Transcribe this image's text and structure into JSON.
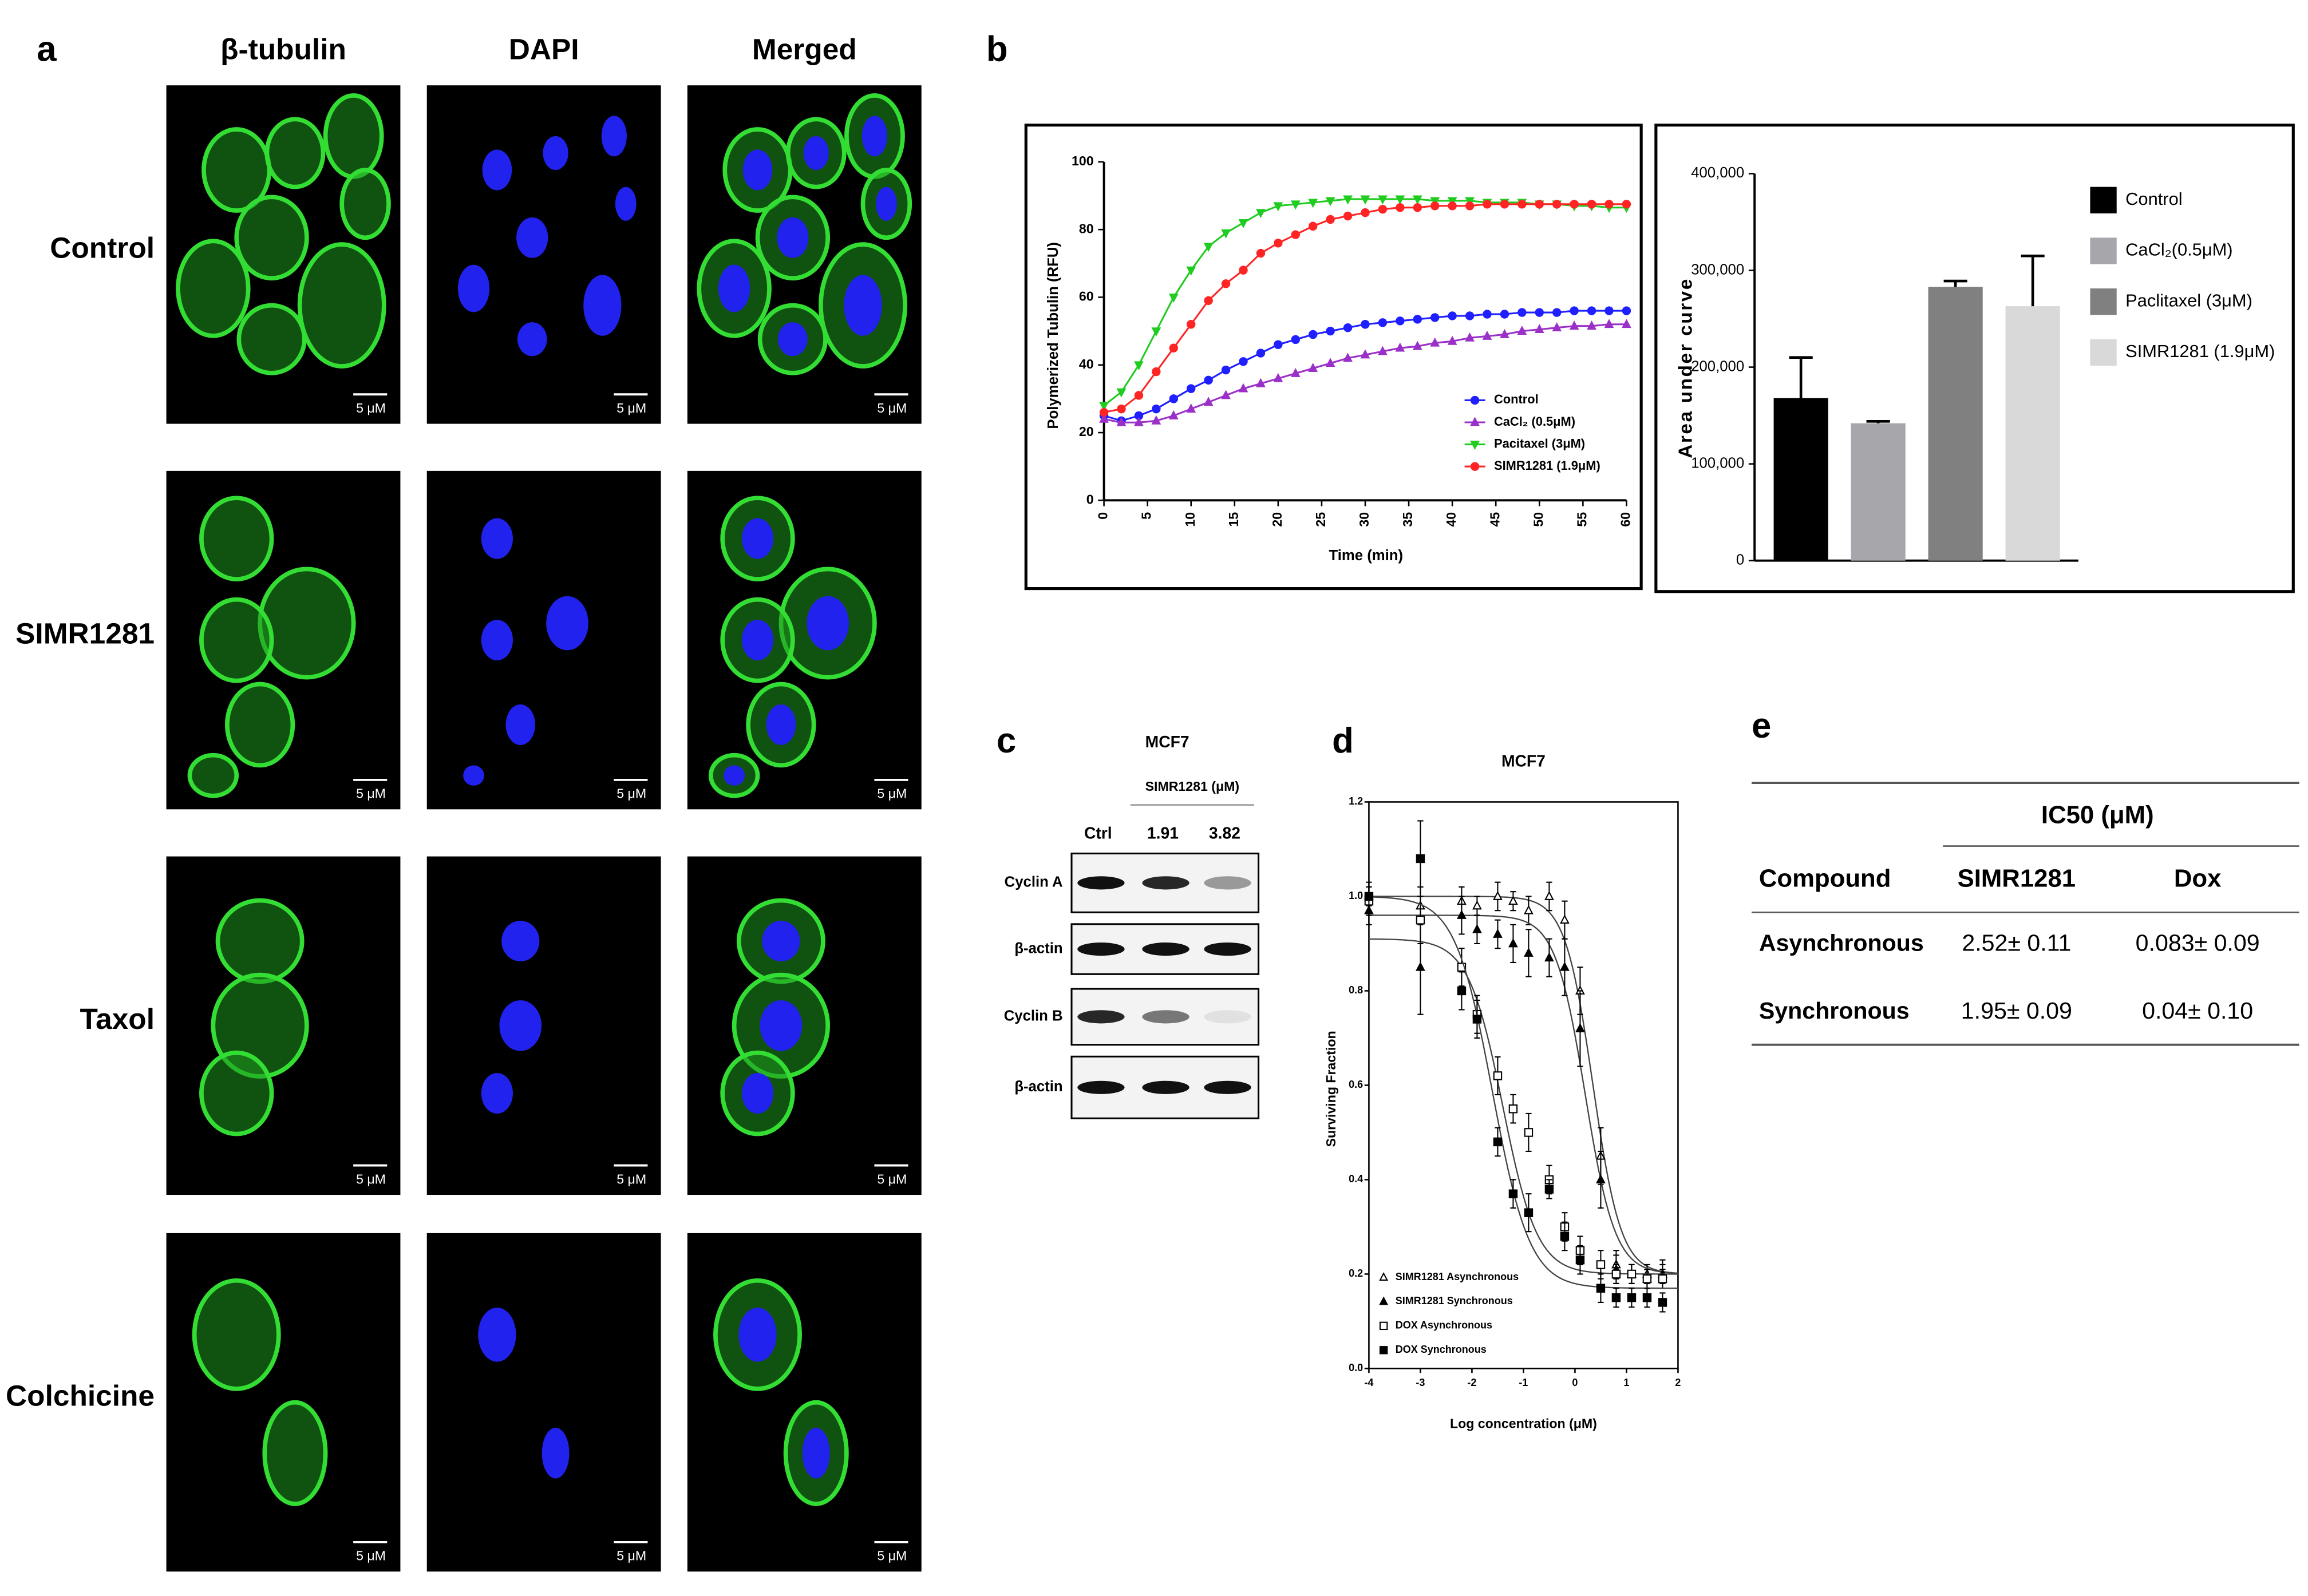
{
  "panel_labels": [
    "a",
    "b",
    "c",
    "d",
    "e"
  ],
  "panel_a": {
    "columns": [
      "β-tubulin",
      "DAPI",
      "Merged"
    ],
    "rows": [
      "Control",
      "SIMR1281",
      "Taxol",
      "Colchicine"
    ],
    "scale_bar": "5 μM"
  },
  "chart_data": [
    {
      "type": "line",
      "xlabel": "Time (min)",
      "ylabel": "Polymerized Tubulin (RFU)",
      "x": [
        0,
        2,
        4,
        6,
        8,
        10,
        12,
        14,
        16,
        18,
        20,
        22,
        24,
        26,
        28,
        30,
        32,
        34,
        36,
        38,
        40,
        42,
        44,
        46,
        48,
        50,
        52,
        54,
        56,
        58,
        60
      ],
      "xlim": [
        0,
        60
      ],
      "xticks": [
        0,
        5,
        10,
        15,
        20,
        25,
        30,
        35,
        40,
        45,
        50,
        55,
        60
      ],
      "ylim": [
        0,
        100
      ],
      "yticks": [
        0,
        20,
        40,
        60,
        80,
        100
      ],
      "series": [
        {
          "name": "Control",
          "color": "#1f1fff",
          "marker": "circle",
          "values": [
            25,
            23.5,
            25,
            27,
            30,
            33,
            35.5,
            38.5,
            41,
            43.5,
            46,
            47.5,
            49,
            50,
            51,
            52,
            52.5,
            53,
            53.5,
            54,
            54.5,
            54.5,
            55,
            55,
            55.5,
            55.5,
            55.5,
            56,
            56,
            56,
            56
          ]
        },
        {
          "name": "CaCl₂ (0.5μM)",
          "color": "#9b30c8",
          "marker": "triangle",
          "values": [
            24,
            23,
            23,
            23.5,
            25,
            27,
            29,
            31,
            33,
            34.5,
            36,
            37.5,
            39,
            40.5,
            42,
            43,
            44,
            45,
            45.5,
            46.5,
            47,
            48,
            48.5,
            49,
            50,
            50.5,
            51,
            51.5,
            51.5,
            52,
            52
          ]
        },
        {
          "name": "Pacitaxel (3μM)",
          "color": "#1fcc1f",
          "marker": "triangle-down",
          "values": [
            28,
            32,
            40,
            50,
            60,
            68,
            75,
            79,
            82,
            85,
            87,
            87.5,
            88,
            88.5,
            89,
            89,
            89,
            89,
            89,
            88.5,
            88.5,
            88.5,
            88,
            88,
            88,
            87.5,
            87.5,
            87,
            87,
            86.5,
            86.5
          ]
        },
        {
          "name": "SIMR1281 (1.9μM)",
          "color": "#ff2424",
          "marker": "circle",
          "values": [
            26,
            27,
            31,
            38,
            45,
            52,
            59,
            64,
            68,
            73,
            76,
            78.5,
            81,
            83,
            84,
            85,
            86,
            86.5,
            86.5,
            87,
            87,
            87,
            87.5,
            87.5,
            87.5,
            87.5,
            87.5,
            87.5,
            87.5,
            87.5,
            87.5
          ]
        }
      ]
    },
    {
      "type": "bar",
      "ylabel": "Area under curve",
      "categories": [
        "Control",
        "CaCl₂(0.5μM)",
        "Paclitaxel (3μM)",
        "SIMR1281 (1.9μM)"
      ],
      "values": [
        168000,
        142000,
        283000,
        263000
      ],
      "errors": [
        42000,
        2000,
        6000,
        52000
      ],
      "colors": [
        "#000000",
        "#a6a6ab",
        "#808080",
        "#d9d9d9"
      ],
      "ylim": [
        0,
        400000
      ],
      "yticks": [
        0,
        {
          "value": 100000,
          "label": "100,000"
        },
        {
          "value": 200000,
          "label": "200,000"
        },
        {
          "value": 300000,
          "label": "300,000"
        },
        {
          "value": 400000,
          "label": "400,000"
        }
      ]
    },
    {
      "type": "scatter",
      "title": "MCF7",
      "xlabel": "Log concentration (μM)",
      "ylabel": "Surviving Fraction",
      "xlim": [
        -4,
        2
      ],
      "xticks": [
        -4,
        -3,
        -2,
        -1,
        0,
        1,
        2
      ],
      "ylim": [
        0,
        1.2
      ],
      "yticks": [
        {
          "value": 0,
          "label": "0.0"
        },
        0.2,
        0.4,
        0.6,
        0.8,
        {
          "value": 1,
          "label": "1.0"
        },
        1.2
      ],
      "x": [
        -4,
        -3,
        -2.2,
        -1.9,
        -1.5,
        -1.2,
        -0.9,
        -0.5,
        -0.2,
        0.1,
        0.5,
        0.8,
        1.1,
        1.4,
        1.7
      ],
      "series": [
        {
          "name": "SIMR1281 Asynchronous",
          "marker": "triangle",
          "filled": false,
          "values": [
            1.0,
            0.98,
            0.99,
            0.98,
            1.0,
            0.99,
            0.97,
            1.0,
            0.95,
            0.8,
            0.45,
            0.22,
            0.2,
            0.2,
            0.2
          ],
          "errors": [
            0.02,
            0.04,
            0.03,
            0.02,
            0.03,
            0.02,
            0.03,
            0.03,
            0.04,
            0.05,
            0.06,
            0.03,
            0.02,
            0.02,
            0.02
          ],
          "fit": {
            "top": 1.0,
            "bottom": 0.2,
            "log_ic50": 0.35,
            "hill": -1.6
          }
        },
        {
          "name": "SIMR1281 Synchronous",
          "marker": "triangle",
          "filled": true,
          "values": [
            0.97,
            0.85,
            0.96,
            0.93,
            0.92,
            0.9,
            0.88,
            0.87,
            0.85,
            0.72,
            0.4,
            0.21,
            0.2,
            0.19,
            0.2
          ],
          "errors": [
            0.03,
            0.1,
            0.04,
            0.03,
            0.03,
            0.04,
            0.05,
            0.04,
            0.06,
            0.08,
            0.06,
            0.03,
            0.02,
            0.02,
            0.03
          ],
          "fit": {
            "top": 0.96,
            "bottom": 0.2,
            "log_ic50": 0.2,
            "hill": -1.5
          }
        },
        {
          "name": "DOX Asynchronous",
          "marker": "square",
          "filled": false,
          "values": [
            0.99,
            0.95,
            0.85,
            0.75,
            0.62,
            0.55,
            0.5,
            0.4,
            0.3,
            0.25,
            0.22,
            0.2,
            0.2,
            0.19,
            0.19
          ],
          "errors": [
            0.03,
            0.05,
            0.04,
            0.04,
            0.04,
            0.03,
            0.04,
            0.03,
            0.03,
            0.03,
            0.03,
            0.02,
            0.02,
            0.02,
            0.02
          ],
          "fit": {
            "top": 0.91,
            "bottom": 0.2,
            "log_ic50": -1.4,
            "hill": -1.3
          }
        },
        {
          "name": "DOX Synchronous",
          "marker": "square",
          "filled": true,
          "values": [
            1.0,
            1.08,
            0.8,
            0.74,
            0.48,
            0.37,
            0.33,
            0.38,
            0.28,
            0.23,
            0.17,
            0.15,
            0.15,
            0.15,
            0.14
          ],
          "errors": [
            0.03,
            0.08,
            0.04,
            0.04,
            0.03,
            0.03,
            0.04,
            0.02,
            0.03,
            0.03,
            0.03,
            0.02,
            0.02,
            0.02,
            0.02
          ],
          "fit": {
            "top": 1.0,
            "bottom": 0.17,
            "log_ic50": -1.6,
            "hill": -1.2
          }
        }
      ]
    }
  ],
  "western_blot": {
    "cell_line": "MCF7",
    "treatment": "SIMR1281 (μM)",
    "lanes": [
      "Ctrl",
      "1.91",
      "3.82"
    ],
    "rows": [
      "Cyclin A",
      "β-actin",
      "Cyclin B",
      "β-actin"
    ]
  },
  "table": {
    "group_header": "IC50 (μM)",
    "columns": [
      "Compound",
      "SIMR1281",
      "Dox"
    ],
    "rows": [
      [
        "Asynchronous",
        "2.52± 0.11",
        "0.083± 0.09"
      ],
      [
        "Synchronous",
        "1.95± 0.09",
        "0.04± 0.10"
      ]
    ]
  }
}
